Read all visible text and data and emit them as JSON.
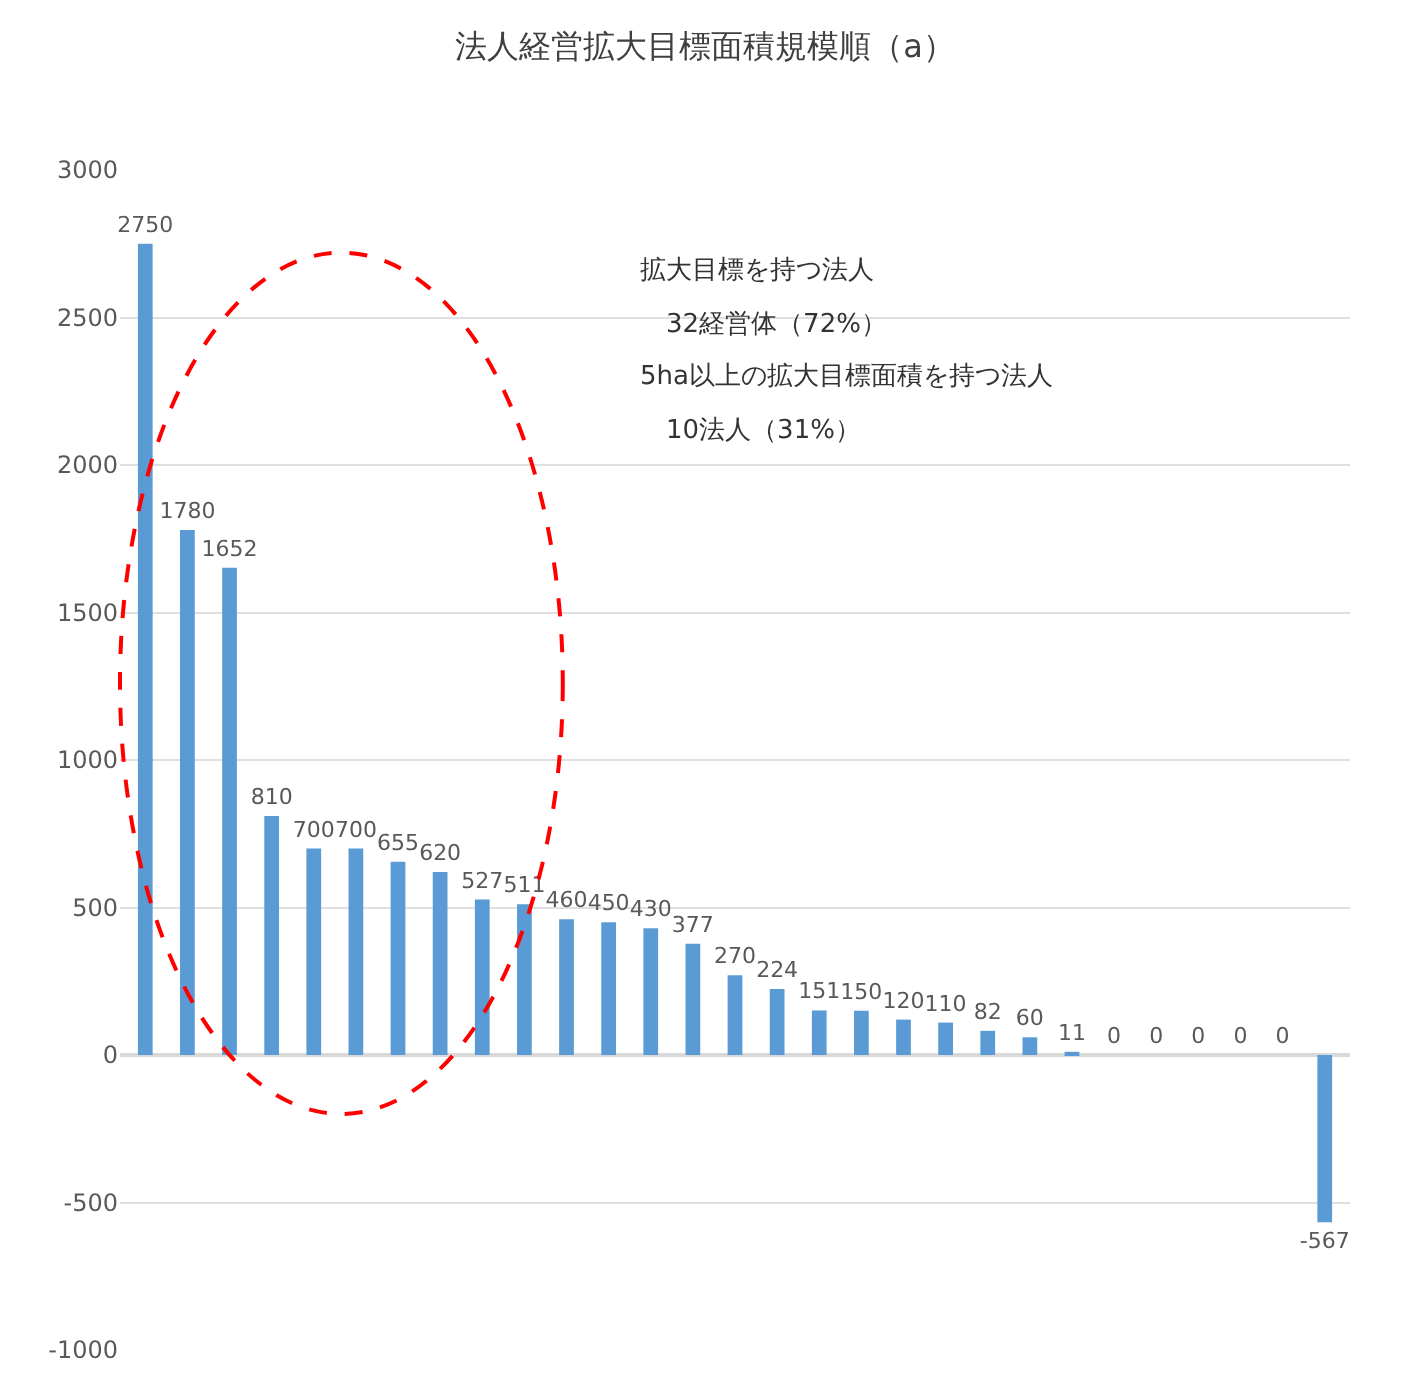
{
  "chart_data": {
    "type": "bar",
    "title": "法人経営拡大目標面積規模順（a）",
    "categories": [
      null,
      null,
      null,
      null,
      null,
      null,
      null,
      null,
      null,
      null,
      null,
      null,
      null,
      null,
      null,
      null,
      null,
      null,
      null,
      null,
      null,
      null,
      null,
      null,
      null,
      null,
      null,
      null,
      null
    ],
    "values": [
      2750,
      1780,
      1652,
      810,
      700,
      700,
      655,
      620,
      527,
      511,
      460,
      450,
      430,
      377,
      270,
      224,
      151,
      150,
      120,
      110,
      82,
      60,
      11,
      0,
      0,
      0,
      0,
      0,
      -567
    ],
    "color": "#5b9bd5",
    "data_labels": true,
    "ylim": [
      -1000,
      3000
    ],
    "yticks": [
      -1000,
      -500,
      0,
      500,
      1000,
      1500,
      2000,
      2500,
      3000
    ],
    "grid": "y",
    "tick_labels": "y",
    "annotations": [
      "拡大目標を持つ法人",
      "　32経営体（72%）",
      "5ha以上の拡大目標面積を持つ法人",
      "　10法人（31%）"
    ]
  }
}
